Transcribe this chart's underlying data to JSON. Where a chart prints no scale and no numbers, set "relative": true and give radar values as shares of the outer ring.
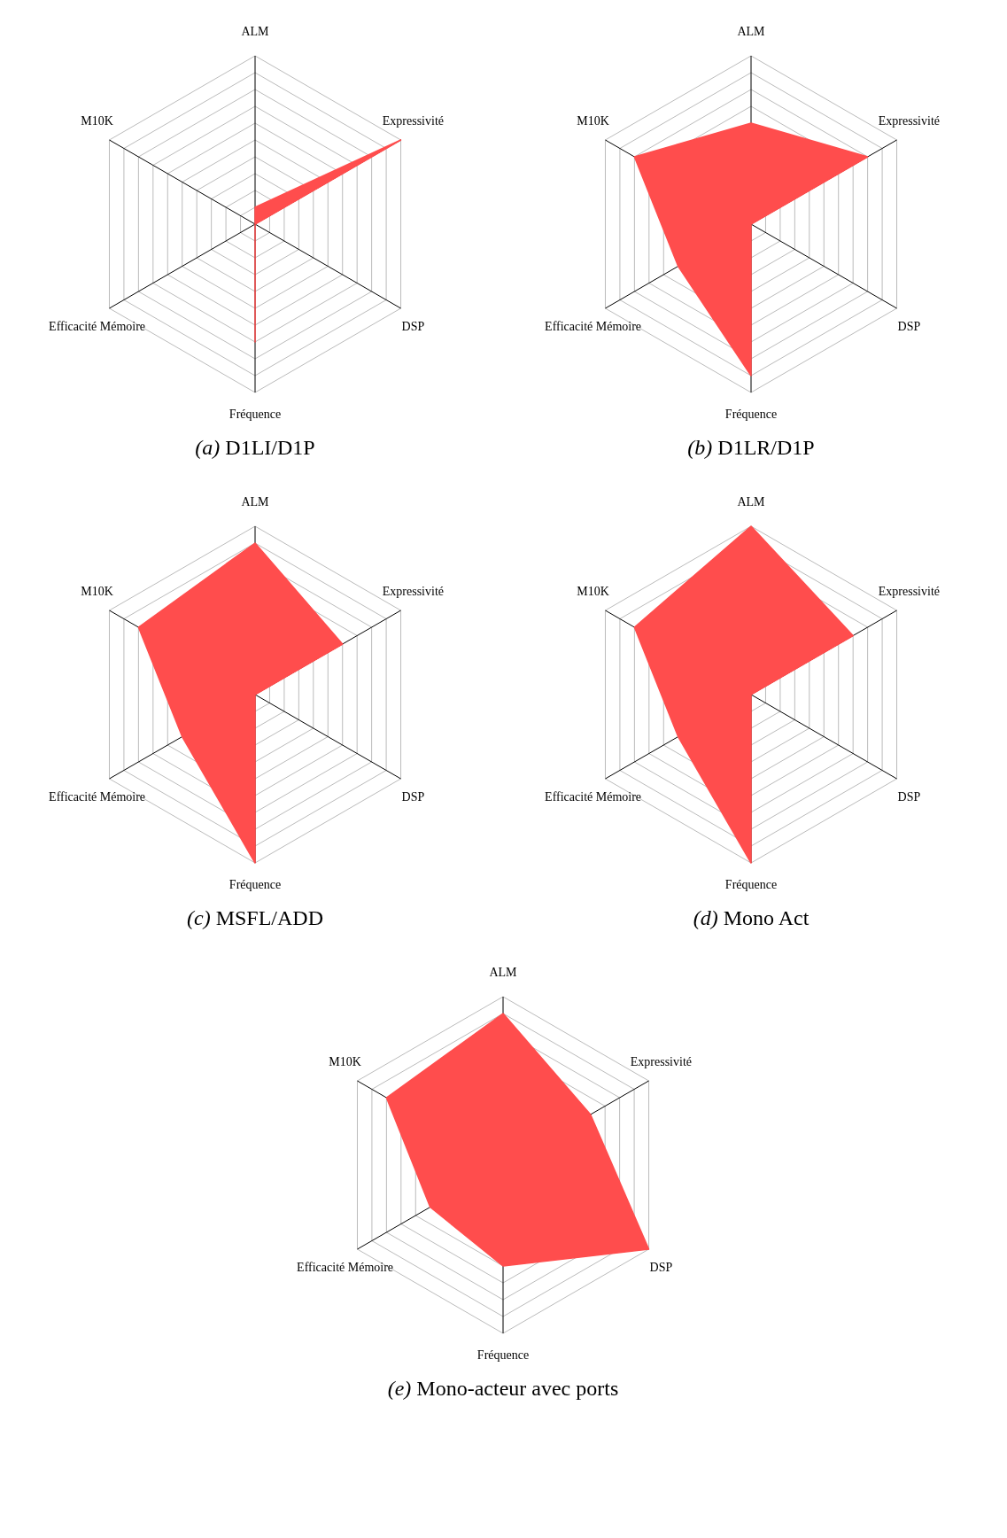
{
  "chart_data": [
    {
      "type": "radar",
      "title": "(a) D1LI/D1P",
      "relative": true,
      "categories": [
        "ALM",
        "Expressivité",
        "DSP",
        "Fréquence",
        "Efficacité Mémoire",
        "M10K"
      ],
      "series": [
        {
          "color": "#ff4d4d",
          "values": [
            0.1,
            1.0,
            0,
            0.7,
            0,
            0
          ]
        }
      ]
    },
    {
      "type": "radar",
      "title": "(b) D1LR/D1P",
      "relative": true,
      "categories": [
        "ALM",
        "Expressivité",
        "DSP",
        "Fréquence",
        "Efficacité Mémoire",
        "M10K"
      ],
      "series": [
        {
          "color": "#ff4d4d",
          "values": [
            0.6,
            0.8,
            0,
            0.9,
            0.5,
            0.8
          ]
        }
      ]
    },
    {
      "type": "radar",
      "title": "(c) MSFL/ADD",
      "relative": true,
      "categories": [
        "ALM",
        "Expressivité",
        "DSP",
        "Fréquence",
        "Efficacité Mémoire",
        "M10K"
      ],
      "series": [
        {
          "color": "#ff4d4d",
          "values": [
            0.9,
            0.6,
            0,
            1.0,
            0.5,
            0.8
          ]
        }
      ]
    },
    {
      "type": "radar",
      "title": "(d) Mono Act",
      "relative": true,
      "categories": [
        "ALM",
        "Expressivité",
        "DSP",
        "Fréquence",
        "Efficacité Mémoire",
        "M10K"
      ],
      "series": [
        {
          "color": "#ff4d4d",
          "values": [
            1.0,
            0.7,
            0,
            1.0,
            0.5,
            0.8
          ]
        }
      ]
    },
    {
      "type": "radar",
      "title": "(e) Mono-acteur avec ports",
      "relative": true,
      "categories": [
        "ALM",
        "Expressivité",
        "DSP",
        "Fréquence",
        "Efficacité Mémoire",
        "M10K"
      ],
      "series": [
        {
          "color": "#ff4d4d",
          "values": [
            0.9,
            0.6,
            1.0,
            0.6,
            0.5,
            0.8
          ]
        }
      ]
    }
  ]
}
